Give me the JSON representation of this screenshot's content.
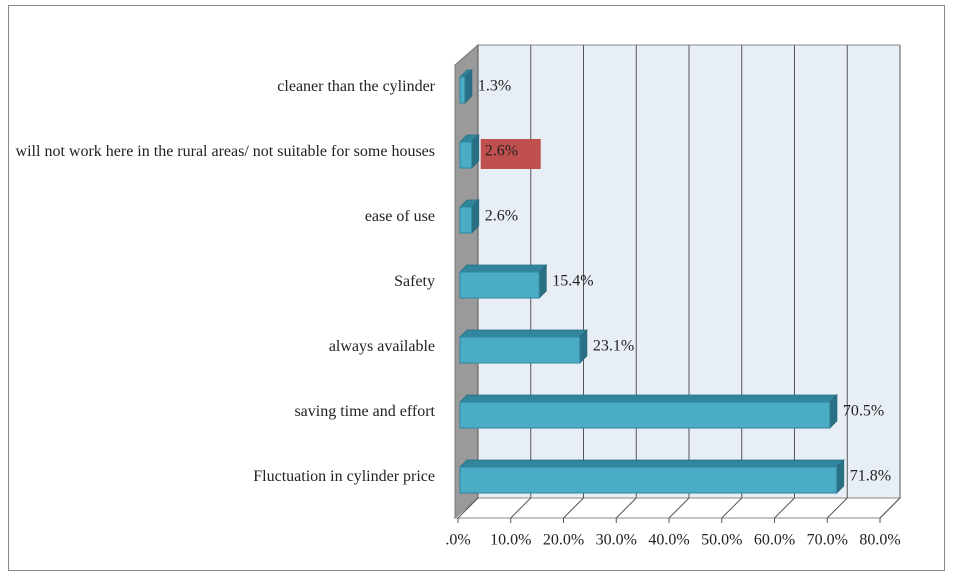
{
  "chart_data": {
    "type": "bar",
    "orientation": "horizontal",
    "categories": [
      "cleaner than the cylinder",
      "will not work here in the rural areas/ not suitable for some houses",
      "ease of use",
      "Safety",
      "always available",
      "saving time and effort",
      "Fluctuation in cylinder price"
    ],
    "values": [
      1.3,
      2.6,
      2.6,
      15.4,
      23.1,
      70.5,
      71.8
    ],
    "value_labels": [
      "1.3%",
      "2.6%",
      "2.6%",
      "15.4%",
      "23.1%",
      "70.5%",
      "71.8%"
    ],
    "value_label_backgrounds": [
      null,
      "#c0504d",
      null,
      null,
      null,
      null,
      null
    ],
    "color": "#4bacc6",
    "xlim": [
      0,
      80
    ],
    "xticks": [
      {
        "value": 0,
        "label": ".0%"
      },
      {
        "value": 10,
        "label": "10.0%"
      },
      {
        "value": 20,
        "label": "20.0%"
      },
      {
        "value": 30,
        "label": "30.0%"
      },
      {
        "value": 40,
        "label": "40.0%"
      },
      {
        "value": 50,
        "label": "50.0%"
      },
      {
        "value": 60,
        "label": "60.0%"
      },
      {
        "value": 70,
        "label": "70.0%"
      },
      {
        "value": 80,
        "label": "80.0%"
      }
    ],
    "grid": true
  }
}
